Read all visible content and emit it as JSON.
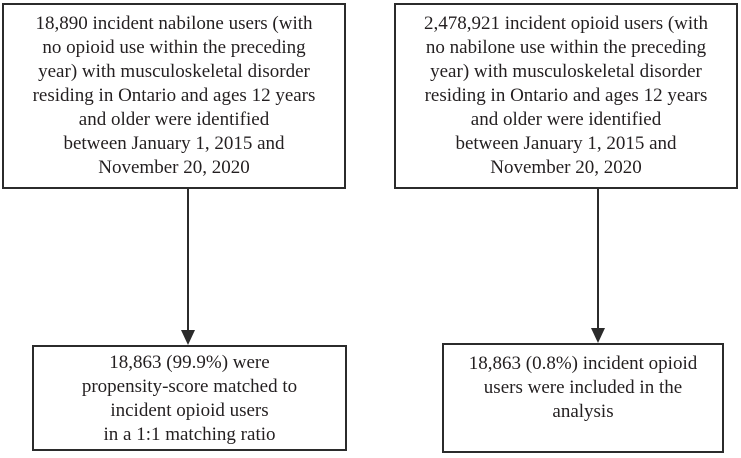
{
  "figure": {
    "type": "cohort-flow-diagram",
    "colors": {
      "background": "#ffffff",
      "box_border": "#2b2b2b",
      "text": "#231f20",
      "arrow": "#2b2b2b"
    }
  },
  "boxes": {
    "nabilone_cohort": {
      "lines": [
        "18,890 incident nabilone users (with",
        "no opioid use within the preceding",
        "year) with musculoskeletal disorder",
        "residing in Ontario and ages 12 years",
        "and older were identified",
        "between January 1, 2015 and",
        "November 20, 2020"
      ]
    },
    "opioid_cohort": {
      "lines": [
        "2,478,921 incident opioid users (with",
        "no nabilone use within the preceding",
        "year) with musculoskeletal disorder",
        "residing in Ontario and ages 12 years",
        "and older were identified",
        "between January 1, 2015 and",
        "November 20, 2020"
      ]
    },
    "matched_nabilone": {
      "lines": [
        "18,863 (99.9%) were",
        "propensity-score matched to",
        "incident opioid users",
        "in a 1:1 matching ratio"
      ]
    },
    "included_opioid": {
      "lines": [
        "18,863 (0.8%) incident opioid",
        "users were included in the",
        "analysis"
      ]
    }
  }
}
